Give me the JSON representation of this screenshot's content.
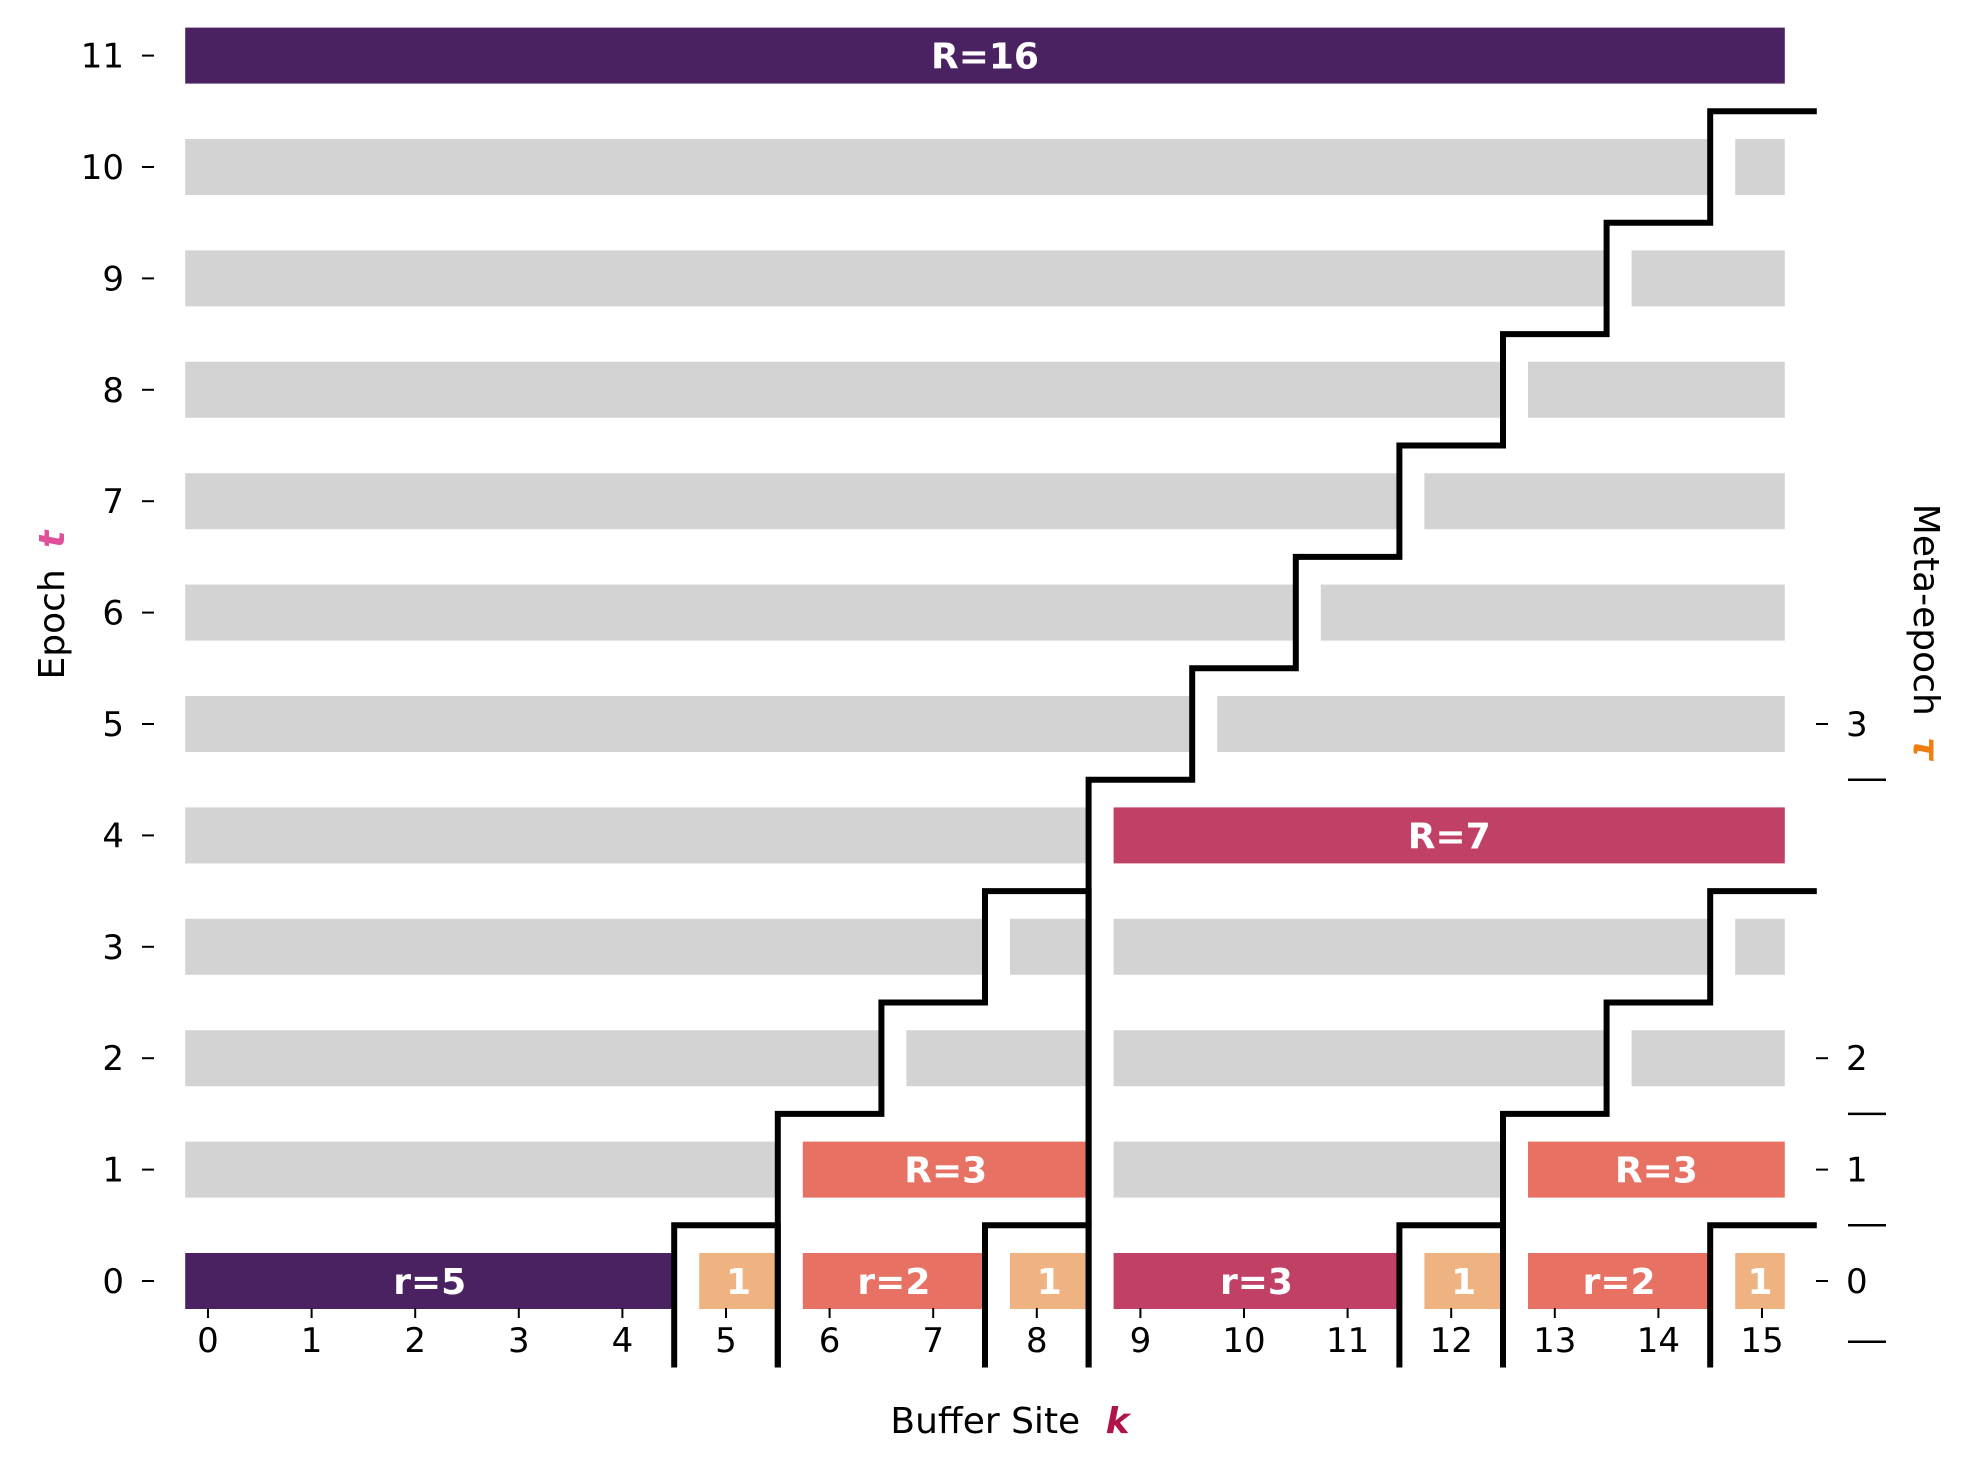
{
  "colors": {
    "background": "#ffffff",
    "idle": "#d3d3d3",
    "r16": "#4a2262",
    "r7": "#c04066",
    "r3": "#e77263",
    "r2": "#e77263",
    "r5": "#4a2262",
    "r3_small": "#c04066",
    "r1": "#efb381",
    "staircase": "#000000",
    "epoch_glyph": "#e0509a",
    "site_glyph": "#b0154a",
    "meta_glyph": "#f07f10"
  },
  "axes": {
    "x_label": "Buffer Site",
    "x_symbol": "k",
    "y_label": "Epoch",
    "y_symbol": "t",
    "y2_label": "Meta-epoch",
    "y2_symbol": "τ",
    "x_ticks": [
      "0",
      "1",
      "2",
      "3",
      "4",
      "5",
      "6",
      "7",
      "8",
      "9",
      "10",
      "11",
      "12",
      "13",
      "14",
      "15"
    ],
    "y_ticks": [
      "0",
      "1",
      "2",
      "3",
      "4",
      "5",
      "6",
      "7",
      "8",
      "9",
      "10",
      "11"
    ],
    "y2_ticks": [
      {
        "label": "0",
        "epoch": 0
      },
      {
        "label": "1",
        "epoch": 1
      },
      {
        "label": "2",
        "epoch": 2
      },
      {
        "label": "3",
        "epoch": 5
      }
    ],
    "y2_separators": [
      -0.5,
      0.5,
      1.5,
      4.5
    ]
  },
  "chart_data": {
    "type": "diagram",
    "bars": [
      {
        "epoch": 0,
        "start": 0,
        "end": 4,
        "label": "r=5",
        "color_key": "r5"
      },
      {
        "epoch": 0,
        "start": 5,
        "end": 5,
        "label": "1",
        "color_key": "r1"
      },
      {
        "epoch": 0,
        "start": 6,
        "end": 7,
        "label": "r=2",
        "color_key": "r2"
      },
      {
        "epoch": 0,
        "start": 8,
        "end": 8,
        "label": "1",
        "color_key": "r1"
      },
      {
        "epoch": 0,
        "start": 9,
        "end": 11,
        "label": "r=3",
        "color_key": "r3_small"
      },
      {
        "epoch": 0,
        "start": 12,
        "end": 12,
        "label": "1",
        "color_key": "r1"
      },
      {
        "epoch": 0,
        "start": 13,
        "end": 14,
        "label": "r=2",
        "color_key": "r2"
      },
      {
        "epoch": 0,
        "start": 15,
        "end": 15,
        "label": "1",
        "color_key": "r1"
      },
      {
        "epoch": 1,
        "start": 0,
        "end": 5,
        "label": "",
        "color_key": "idle"
      },
      {
        "epoch": 1,
        "start": 6,
        "end": 8,
        "label": "R=3",
        "color_key": "r3"
      },
      {
        "epoch": 1,
        "start": 9,
        "end": 12,
        "label": "",
        "color_key": "idle"
      },
      {
        "epoch": 1,
        "start": 13,
        "end": 15,
        "label": "R=3",
        "color_key": "r3"
      },
      {
        "epoch": 2,
        "start": 0,
        "end": 6,
        "label": "",
        "color_key": "idle"
      },
      {
        "epoch": 2,
        "start": 7,
        "end": 8,
        "label": "",
        "color_key": "idle"
      },
      {
        "epoch": 2,
        "start": 9,
        "end": 13,
        "label": "",
        "color_key": "idle"
      },
      {
        "epoch": 2,
        "start": 14,
        "end": 15,
        "label": "",
        "color_key": "idle"
      },
      {
        "epoch": 3,
        "start": 0,
        "end": 7,
        "label": "",
        "color_key": "idle"
      },
      {
        "epoch": 3,
        "start": 8,
        "end": 8,
        "label": "",
        "color_key": "idle"
      },
      {
        "epoch": 3,
        "start": 9,
        "end": 14,
        "label": "",
        "color_key": "idle"
      },
      {
        "epoch": 3,
        "start": 15,
        "end": 15,
        "label": "",
        "color_key": "idle"
      },
      {
        "epoch": 4,
        "start": 0,
        "end": 8,
        "label": "",
        "color_key": "idle"
      },
      {
        "epoch": 4,
        "start": 9,
        "end": 15,
        "label": "R=7",
        "color_key": "r7"
      },
      {
        "epoch": 5,
        "start": 0,
        "end": 9,
        "label": "",
        "color_key": "idle"
      },
      {
        "epoch": 5,
        "start": 10,
        "end": 15,
        "label": "",
        "color_key": "idle"
      },
      {
        "epoch": 6,
        "start": 0,
        "end": 10,
        "label": "",
        "color_key": "idle"
      },
      {
        "epoch": 6,
        "start": 11,
        "end": 15,
        "label": "",
        "color_key": "idle"
      },
      {
        "epoch": 7,
        "start": 0,
        "end": 11,
        "label": "",
        "color_key": "idle"
      },
      {
        "epoch": 7,
        "start": 12,
        "end": 15,
        "label": "",
        "color_key": "idle"
      },
      {
        "epoch": 8,
        "start": 0,
        "end": 12,
        "label": "",
        "color_key": "idle"
      },
      {
        "epoch": 8,
        "start": 13,
        "end": 15,
        "label": "",
        "color_key": "idle"
      },
      {
        "epoch": 9,
        "start": 0,
        "end": 13,
        "label": "",
        "color_key": "idle"
      },
      {
        "epoch": 9,
        "start": 14,
        "end": 15,
        "label": "",
        "color_key": "idle"
      },
      {
        "epoch": 10,
        "start": 0,
        "end": 14,
        "label": "",
        "color_key": "idle"
      },
      {
        "epoch": 10,
        "start": 15,
        "end": 15,
        "label": "",
        "color_key": "idle"
      },
      {
        "epoch": 11,
        "start": 0,
        "end": 15,
        "label": "R=16",
        "color_key": "r16"
      }
    ],
    "staircases": [
      [
        [
          4.5,
          -0.75
        ],
        [
          4.5,
          0.5
        ],
        [
          5.5,
          0.5
        ],
        [
          5.5,
          -0.75
        ]
      ],
      [
        [
          5.5,
          -0.75
        ],
        [
          5.5,
          1.5
        ],
        [
          6.5,
          1.5
        ],
        [
          6.5,
          2.5
        ],
        [
          7.5,
          2.5
        ],
        [
          7.5,
          3.5
        ],
        [
          8.5,
          3.5
        ],
        [
          8.5,
          -0.75
        ]
      ],
      [
        [
          7.5,
          -0.75
        ],
        [
          7.5,
          0.5
        ],
        [
          8.5,
          0.5
        ]
      ],
      [
        [
          11.5,
          -0.75
        ],
        [
          11.5,
          0.5
        ],
        [
          12.5,
          0.5
        ],
        [
          12.5,
          -0.75
        ]
      ],
      [
        [
          12.5,
          -0.75
        ],
        [
          12.5,
          1.5
        ],
        [
          13.5,
          1.5
        ],
        [
          13.5,
          2.5
        ],
        [
          14.5,
          2.5
        ],
        [
          14.5,
          3.5
        ],
        [
          15.5,
          3.5
        ]
      ],
      [
        [
          14.5,
          -0.75
        ],
        [
          14.5,
          0.5
        ],
        [
          15.5,
          0.5
        ]
      ],
      [
        [
          8.5,
          -0.75
        ],
        [
          8.5,
          4.5
        ],
        [
          9.5,
          4.5
        ],
        [
          9.5,
          5.5
        ],
        [
          10.5,
          5.5
        ],
        [
          10.5,
          6.5
        ],
        [
          11.5,
          6.5
        ],
        [
          11.5,
          7.5
        ],
        [
          12.5,
          7.5
        ],
        [
          12.5,
          8.5
        ],
        [
          13.5,
          8.5
        ],
        [
          13.5,
          9.5
        ],
        [
          14.5,
          9.5
        ],
        [
          14.5,
          10.5
        ],
        [
          15.5,
          10.5
        ]
      ]
    ]
  }
}
